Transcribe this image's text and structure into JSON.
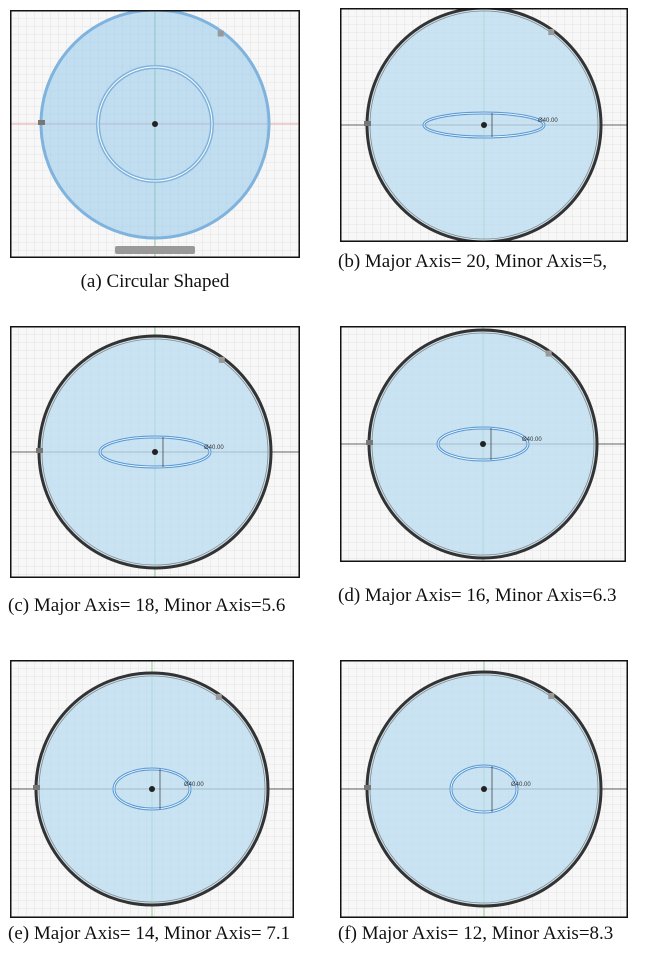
{
  "panels": [
    {
      "caption": "(a)  Circular Shaped"
    },
    {
      "caption": "(b) Major Axis= 20, Minor Axis=5,",
      "dimension": "Ø40.00"
    },
    {
      "caption": "(c) Major Axis= 18, Minor Axis=5.6",
      "dimension": "Ø40.00"
    },
    {
      "caption": "(d) Major Axis= 16, Minor Axis=6.3",
      "dimension": "Ø40.00"
    },
    {
      "caption": "(e) Major Axis= 14, Minor Axis= 7.1",
      "dimension": "Ø40.00"
    },
    {
      "caption": "(f) Major Axis= 12, Minor Axis=8.3",
      "dimension": "Ø40.00"
    }
  ]
}
